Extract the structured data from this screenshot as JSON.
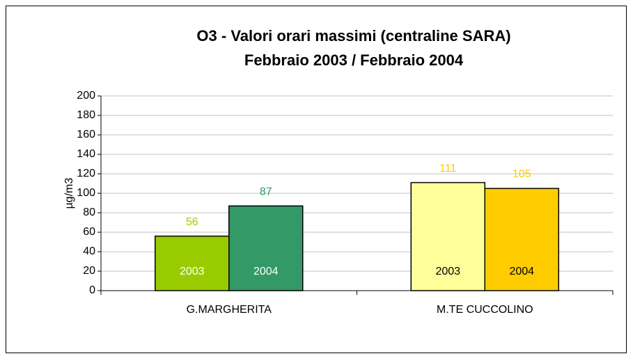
{
  "chart_data": {
    "type": "bar",
    "title": [
      "O3 - Valori orari massimi (centraline SARA)",
      "Febbraio 2003 / Febbraio 2004"
    ],
    "ylabel": "µg/m3",
    "categories": [
      "G.MARGHERITA",
      "M.TE CUCCOLINO"
    ],
    "series": [
      {
        "name": "2003",
        "values": [
          56,
          111
        ],
        "colors": [
          "#99cc00",
          "#ffff99"
        ],
        "label_colors": [
          "#99cc00",
          "#ffcc00"
        ],
        "name_colors": [
          "#ffffff",
          "#000000"
        ]
      },
      {
        "name": "2004",
        "values": [
          87,
          105
        ],
        "colors": [
          "#339966",
          "#ffcc00"
        ],
        "label_colors": [
          "#339966",
          "#ffcc00"
        ],
        "name_colors": [
          "#ffffff",
          "#000000"
        ]
      }
    ],
    "ylim": [
      0,
      200
    ],
    "yticks": [
      0,
      20,
      40,
      60,
      80,
      100,
      120,
      140,
      160,
      180,
      200
    ],
    "grid": true
  }
}
